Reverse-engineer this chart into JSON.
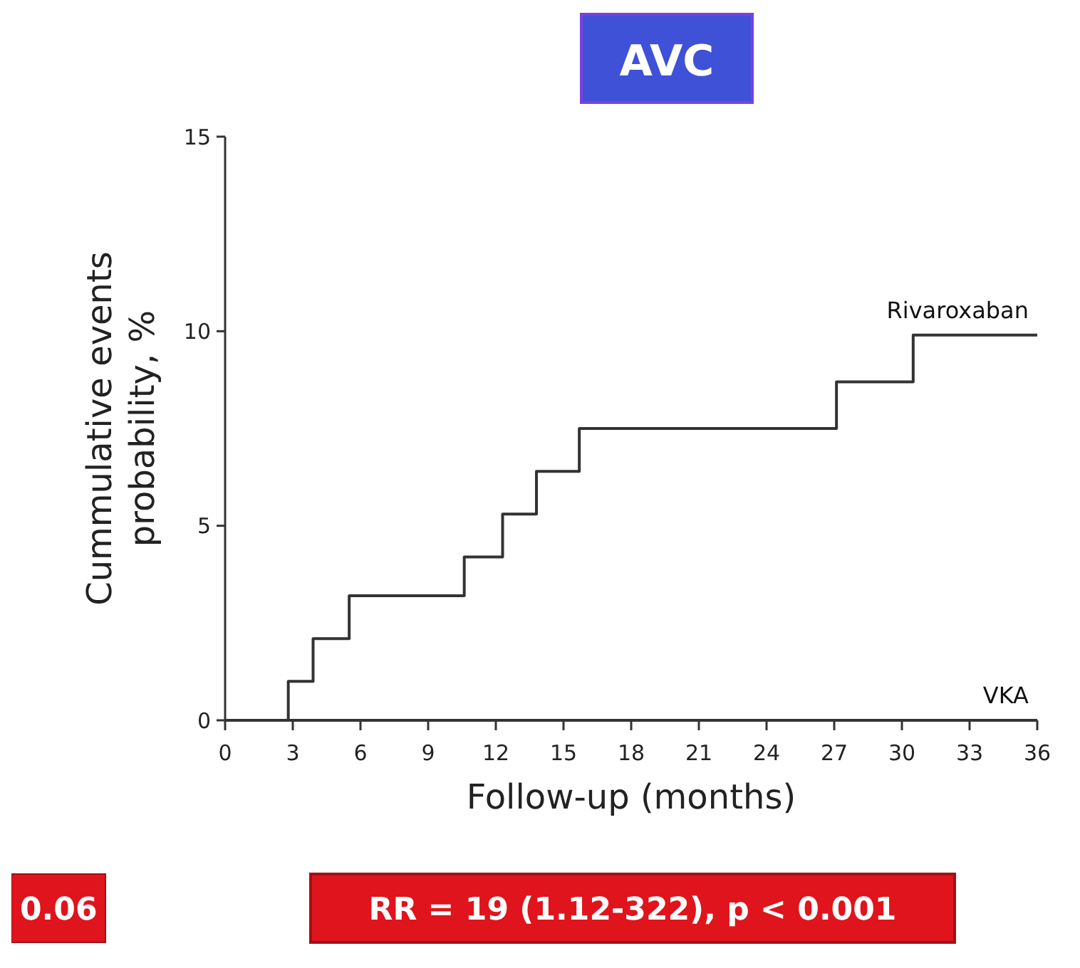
{
  "chart_data": {
    "type": "step",
    "title": "AVC",
    "xlabel": "Follow-up (months)",
    "ylabel": "Cummulative events probability, %",
    "xlim": [
      0,
      36
    ],
    "xticks": [
      0,
      3,
      6,
      9,
      12,
      15,
      18,
      21,
      24,
      27,
      30,
      33,
      36
    ],
    "ylim": [
      0,
      15
    ],
    "yticks": [
      0,
      5,
      10,
      15
    ],
    "grid": false,
    "series": [
      {
        "name": "Rivaroxaban",
        "color": "#333333",
        "x": [
          2.8,
          2.8,
          3.9,
          5.5,
          10.6,
          12.3,
          13.8,
          15.7,
          27.1,
          30.5,
          36
        ],
        "values": [
          0,
          1.0,
          2.1,
          3.2,
          4.2,
          5.3,
          6.4,
          7.5,
          8.7,
          9.9,
          9.9
        ]
      },
      {
        "name": "VKA",
        "color": "#333333",
        "x": [
          0,
          36
        ],
        "values": [
          0,
          0
        ]
      }
    ],
    "annotations": [
      "0.06",
      "RR = 19 (1.12-322), p < 0.001"
    ]
  }
}
